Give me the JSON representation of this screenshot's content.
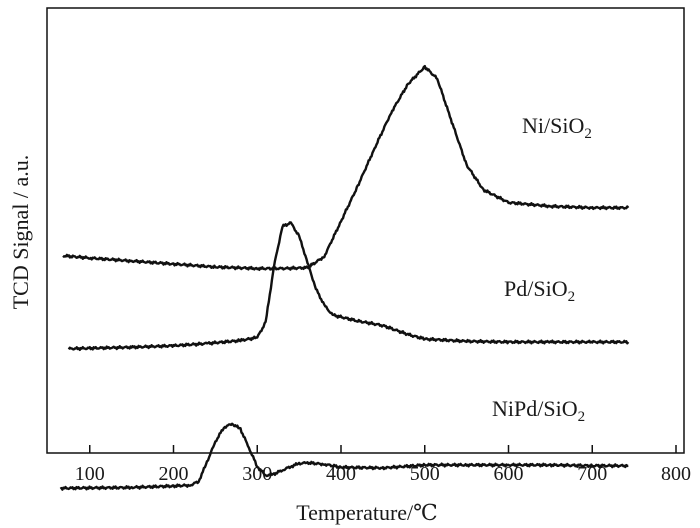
{
  "chart_data": {
    "type": "line",
    "title": "",
    "xlabel": "Temperature/℃",
    "ylabel": "TCD Signal / a.u.",
    "xlim": [
      50,
      800
    ],
    "xticks": [
      "100",
      "200",
      "300",
      "400",
      "500",
      "600",
      "700",
      "800"
    ],
    "xtick_values": [
      100,
      200,
      300,
      400,
      500,
      600,
      700,
      800
    ],
    "y_units": "a.u.",
    "grid": false,
    "legend": "none",
    "line_color": "#111111",
    "series": [
      {
        "name": "Ni/SiO2",
        "label_main": "Ni/SiO",
        "label_sub": "2",
        "x": [
          68,
          100,
          150,
          200,
          250,
          300,
          330,
          360,
          380,
          400,
          420,
          440,
          460,
          480,
          500,
          515,
          530,
          550,
          570,
          600,
          650,
          700,
          743
        ],
        "y": [
          1.19,
          1.16,
          1.12,
          1.08,
          1.04,
          1.02,
          1.02,
          1.03,
          1.18,
          1.65,
          2.12,
          2.62,
          3.1,
          3.48,
          3.71,
          3.55,
          3.05,
          2.4,
          2.07,
          1.9,
          1.85,
          1.83,
          1.83
        ]
      },
      {
        "name": "Pd/SiO2",
        "label_main": "Pd/SiO",
        "label_sub": "2",
        "x": [
          75,
          150,
          200,
          240,
          280,
          300,
          310,
          320,
          330,
          340,
          350,
          360,
          370,
          380,
          390,
          420,
          450,
          480,
          500,
          550,
          600,
          650,
          700,
          743
        ],
        "y": [
          -0.05,
          -0.03,
          -0.01,
          0.02,
          0.06,
          0.1,
          0.3,
          1.05,
          1.58,
          1.63,
          1.45,
          1.1,
          0.75,
          0.53,
          0.4,
          0.32,
          0.26,
          0.14,
          0.08,
          0.05,
          0.04,
          0.04,
          0.04,
          0.04
        ]
      },
      {
        "name": "NiPd/SiO2",
        "label_main": "NiPd/SiO",
        "label_sub": "2",
        "x": [
          65,
          150,
          200,
          220,
          230,
          240,
          250,
          260,
          270,
          280,
          290,
          300,
          310,
          320,
          330,
          340,
          350,
          360,
          380,
          400,
          450,
          500,
          550,
          600,
          650,
          700,
          743
        ],
        "y": [
          -1.91,
          -1.9,
          -1.88,
          -1.87,
          -1.82,
          -1.56,
          -1.29,
          -1.1,
          -1.05,
          -1.12,
          -1.37,
          -1.62,
          -1.74,
          -1.72,
          -1.67,
          -1.62,
          -1.58,
          -1.57,
          -1.59,
          -1.63,
          -1.64,
          -1.6,
          -1.6,
          -1.6,
          -1.6,
          -1.61,
          -1.61
        ]
      }
    ]
  }
}
